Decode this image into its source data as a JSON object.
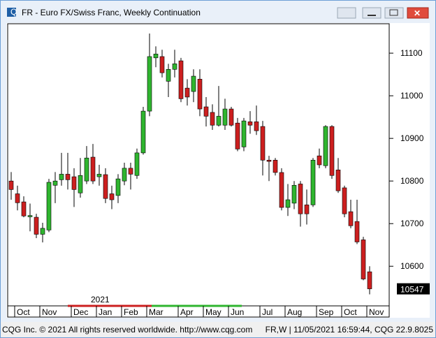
{
  "window": {
    "title": "FR - Euro FX/Swiss Franc, Weekly Continuation"
  },
  "chart_data": {
    "type": "candlestick",
    "categories": [
      null,
      "Oct",
      null,
      null,
      null,
      "Nov",
      null,
      null,
      null,
      null,
      "Dec",
      null,
      null,
      null,
      "Jan",
      null,
      null,
      null,
      "Feb",
      null,
      null,
      null,
      "Mar",
      null,
      null,
      null,
      null,
      "Apr",
      null,
      null,
      null,
      "May",
      null,
      null,
      null,
      "Jun",
      null,
      null,
      null,
      null,
      "Jul",
      null,
      null,
      null,
      "Aug",
      null,
      null,
      null,
      null,
      "Sep",
      null,
      null,
      null,
      "Oct",
      null,
      null,
      null,
      "Nov"
    ],
    "open": [
      10800,
      10770,
      10751,
      10716,
      10715,
      10675,
      10685,
      10790,
      10803,
      10816,
      10810,
      10772,
      10800,
      10856,
      10810,
      10815,
      10770,
      10766,
      10800,
      10830,
      10813,
      10866,
      10964,
      11089,
      11092,
      11034,
      11062,
      11082,
      11018,
      11010,
      11039,
      10974,
      10961,
      10931,
      10931,
      10969,
      10936,
      10880,
      10939,
      10939,
      10928,
      10849,
      10849,
      10820,
      10738,
      10748,
      10793,
      10744,
      10744,
      10859,
      10836,
      10928,
      10826,
      10784,
      10728,
      10705,
      10662,
      10587
    ],
    "high": [
      10821,
      10789,
      10764,
      10747,
      10723,
      10702,
      10805,
      10821,
      10866,
      10866,
      10830,
      10854,
      10882,
      10887,
      10838,
      10830,
      10789,
      10816,
      10843,
      10843,
      10876,
      10974,
      11146,
      11116,
      11108,
      11075,
      11108,
      11089,
      11039,
      11062,
      11062,
      10997,
      10980,
      11023,
      10993,
      10974,
      10948,
      10948,
      10964,
      10977,
      10941,
      10859,
      10854,
      10830,
      10793,
      10800,
      10800,
      10780,
      10854,
      10876,
      10931,
      10931,
      10854,
      10789,
      10756,
      10756,
      10669,
      10600
    ],
    "low": [
      10756,
      10731,
      10715,
      10682,
      10666,
      10656,
      10680,
      10748,
      10789,
      10780,
      10739,
      10761,
      10793,
      10793,
      10789,
      10748,
      10734,
      10748,
      10790,
      10780,
      10805,
      10862,
      10952,
      11067,
      11043,
      10997,
      11043,
      10985,
      10977,
      10985,
      10952,
      10928,
      10920,
      10928,
      10920,
      10928,
      10870,
      10870,
      10911,
      10908,
      10813,
      10800,
      10813,
      10731,
      10718,
      10734,
      10693,
      10698,
      10739,
      10830,
      10830,
      10805,
      10772,
      10715,
      10689,
      10652,
      10567,
      10534
    ],
    "close": [
      10780,
      10749,
      10718,
      10719,
      10675,
      10689,
      10797,
      10800,
      10816,
      10803,
      10780,
      10813,
      10854,
      10800,
      10816,
      10759,
      10756,
      10805,
      10830,
      10816,
      10866,
      10964,
      11092,
      11098,
      11054,
      11062,
      11075,
      10993,
      10997,
      11046,
      10969,
      10952,
      10931,
      10952,
      10969,
      10931,
      10875,
      10941,
      10931,
      10918,
      10849,
      10846,
      10820,
      10738,
      10756,
      10790,
      10723,
      10723,
      10849,
      10838,
      10928,
      10813,
      10777,
      10723,
      10695,
      10657,
      10570,
      10547
    ],
    "up_color": "#2fb52f",
    "down_color": "#cc1f1f",
    "ylim": [
      10507,
      11169
    ],
    "yticks": [
      10600,
      10700,
      10800,
      10900,
      11000,
      11100
    ],
    "year_label": "2021"
  },
  "footer": {
    "left": "CQG Inc. © 2021 All rights reserved worldwide. http://www.cqg.com",
    "right": "FR,W | 11/05/2021 16:59:44, CQG 22.9.8025"
  }
}
